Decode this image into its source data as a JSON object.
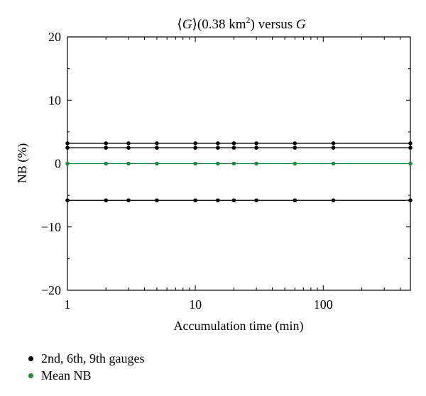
{
  "chart_data": {
    "type": "line",
    "title_parts": {
      "open": "⟨",
      "var": "G",
      "close": "⟩",
      "area": "(0.38 km",
      "sup": "2",
      "tail": ") versus ",
      "var2": "G"
    },
    "xlabel": "Accumulation time (min)",
    "ylabel": "NB (%)",
    "x_scale": "log",
    "xlim": [
      1,
      480
    ],
    "ylim": [
      -20,
      20
    ],
    "x_ticks": [
      1,
      10,
      100
    ],
    "x_tick_labels": [
      "1",
      "10",
      "100"
    ],
    "y_ticks": [
      -20,
      -10,
      0,
      10,
      20
    ],
    "y_tick_labels": [
      "−20",
      "−10",
      "0",
      "10",
      "20"
    ],
    "grid": false,
    "legend_position": "bottom-left",
    "x": [
      1,
      2,
      3,
      5,
      10,
      15,
      20,
      30,
      60,
      120,
      480
    ],
    "series": [
      {
        "group": "gauges",
        "color": "#000000",
        "values": [
          3.2,
          3.2,
          3.2,
          3.2,
          3.2,
          3.2,
          3.2,
          3.2,
          3.2,
          3.2,
          3.2
        ]
      },
      {
        "group": "gauges",
        "color": "#000000",
        "values": [
          2.5,
          2.5,
          2.5,
          2.5,
          2.5,
          2.5,
          2.5,
          2.5,
          2.5,
          2.5,
          2.5
        ]
      },
      {
        "group": "gauges",
        "color": "#000000",
        "values": [
          -5.8,
          -5.8,
          -5.8,
          -5.8,
          -5.8,
          -5.8,
          -5.8,
          -5.8,
          -5.8,
          -5.8,
          -5.8
        ]
      },
      {
        "group": "mean",
        "color": "#1e8a3c",
        "values": [
          0,
          0,
          0,
          0,
          0,
          0,
          0,
          0,
          0,
          0,
          0
        ]
      }
    ],
    "legend": [
      {
        "label": "2nd, 6th, 9th gauges",
        "color": "#000000"
      },
      {
        "label": "Mean NB",
        "color": "#1e8a3c"
      }
    ]
  }
}
